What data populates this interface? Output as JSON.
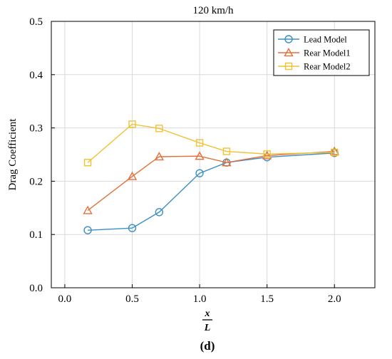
{
  "chart_data": {
    "type": "line",
    "title": "120 km/h",
    "ylabel": "Drag Coefficient",
    "xlabel_numerator": "x",
    "xlabel_denominator": "L",
    "caption": "(d)",
    "xlim": [
      -0.1,
      2.3
    ],
    "ylim": [
      0.0,
      0.5
    ],
    "xticks": [
      0.0,
      0.5,
      1.0,
      1.5,
      2.0
    ],
    "xtick_labels": [
      "0.0",
      "0.5",
      "1.0",
      "1.5",
      "2.0"
    ],
    "yticks": [
      0.0,
      0.1,
      0.2,
      0.3,
      0.4,
      0.5
    ],
    "ytick_labels": [
      "0.0",
      "0.1",
      "0.2",
      "0.3",
      "0.4",
      "0.5"
    ],
    "grid": true,
    "legend_position": "top-right",
    "series": [
      {
        "name": "Lead Model",
        "color": "#3b8fc4",
        "marker": "circle",
        "x": [
          0.17,
          0.5,
          0.7,
          1.0,
          1.2,
          1.5,
          2.0
        ],
        "y": [
          0.108,
          0.112,
          0.142,
          0.215,
          0.235,
          0.245,
          0.253
        ]
      },
      {
        "name": "Rear Model1",
        "color": "#e3703a",
        "marker": "triangle",
        "x": [
          0.17,
          0.5,
          0.7,
          1.0,
          1.2,
          1.5,
          2.0
        ],
        "y": [
          0.145,
          0.209,
          0.246,
          0.247,
          0.235,
          0.248,
          0.256
        ]
      },
      {
        "name": "Rear Model2",
        "color": "#f1c232",
        "marker": "square",
        "x": [
          0.17,
          0.5,
          0.7,
          1.0,
          1.2,
          1.5,
          2.0
        ],
        "y": [
          0.235,
          0.307,
          0.299,
          0.272,
          0.256,
          0.251,
          0.254
        ]
      }
    ]
  }
}
